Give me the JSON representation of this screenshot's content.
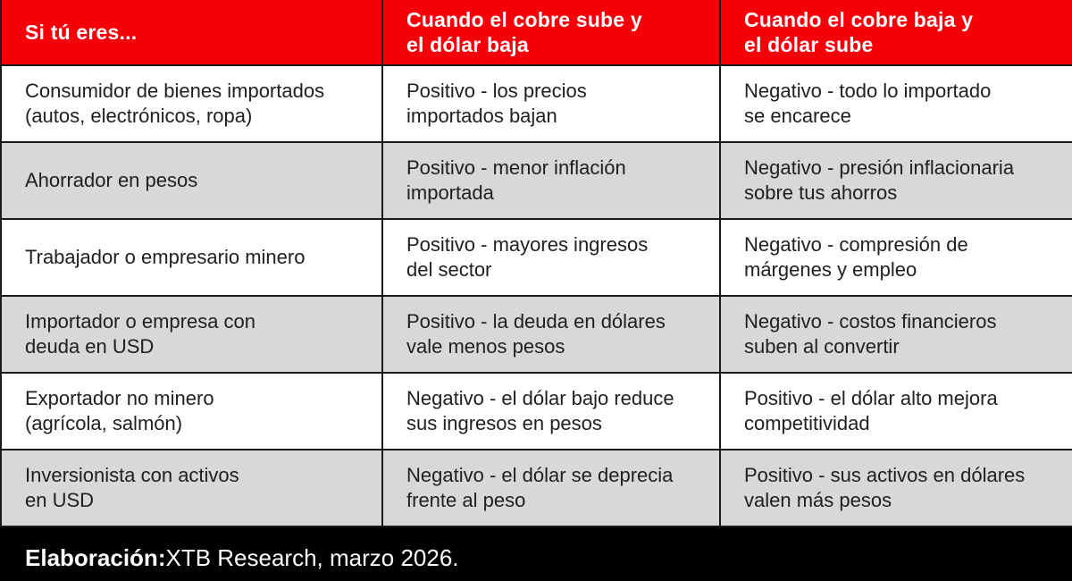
{
  "colors": {
    "header_bg": "#f50008",
    "header_text": "#ffffff",
    "row_bg": "#ffffff",
    "row_alt_bg": "#d8d8d8",
    "border": "#1a1a1a",
    "body_text": "#202020",
    "footer_bg": "#000000"
  },
  "table": {
    "headers": [
      "Si tú eres...",
      "Cuando el cobre sube y\nel dólar baja",
      "Cuando el cobre baja y\nel dólar sube"
    ],
    "rows": [
      [
        "Consumidor de bienes importados\n(autos, electrónicos, ropa)",
        "Positivo - los precios\nimportados bajan",
        "Negativo - todo lo importado\nse encarece"
      ],
      [
        "Ahorrador en pesos",
        "Positivo - menor inflación\nimportada",
        "Negativo - presión inflacionaria\nsobre tus ahorros"
      ],
      [
        "Trabajador o empresario minero",
        "Positivo - mayores ingresos\ndel sector",
        "Negativo - compresión de\nmárgenes y empleo"
      ],
      [
        "Importador o empresa con\ndeuda en USD",
        "Positivo - la deuda en dólares\nvale menos pesos",
        "Negativo - costos financieros\nsuben al convertir"
      ],
      [
        "Exportador no minero\n(agrícola, salmón)",
        "Negativo - el dólar bajo reduce\nsus ingresos en pesos",
        "Positivo - el dólar alto mejora\ncompetitividad"
      ],
      [
        "Inversionista con activos\nen USD",
        "Negativo - el dólar se deprecia\nfrente al peso",
        "Positivo - sus activos en dólares\nvalen más pesos"
      ]
    ]
  },
  "footer": {
    "label": "Elaboración:",
    "text": " XTB Research, marzo 2026."
  },
  "chart_data": {
    "type": "table",
    "title": "Impacto del cobre y el dólar según perfil",
    "columns": [
      "Si tú eres...",
      "Cuando el cobre sube y el dólar baja",
      "Cuando el cobre baja y el dólar sube"
    ],
    "rows": [
      [
        "Consumidor de bienes importados (autos, electrónicos, ropa)",
        "Positivo - los precios importados bajan",
        "Negativo - todo lo importado se encarece"
      ],
      [
        "Ahorrador en pesos",
        "Positivo - menor inflación importada",
        "Negativo - presión inflacionaria sobre tus ahorros"
      ],
      [
        "Trabajador o empresario minero",
        "Positivo - mayores ingresos del sector",
        "Negativo - compresión de márgenes y empleo"
      ],
      [
        "Importador o empresa con deuda en USD",
        "Positivo - la deuda en dólares vale menos pesos",
        "Negativo - costos financieros suben al convertir"
      ],
      [
        "Exportador no minero (agrícola, salmón)",
        "Negativo - el dólar bajo reduce sus ingresos en pesos",
        "Positivo - el dólar alto mejora competitividad"
      ],
      [
        "Inversionista con activos en USD",
        "Negativo - el dólar se deprecia frente al peso",
        "Positivo - sus activos en dólares valen más pesos"
      ]
    ],
    "source": "Elaboración: XTB Research, marzo 2026."
  }
}
